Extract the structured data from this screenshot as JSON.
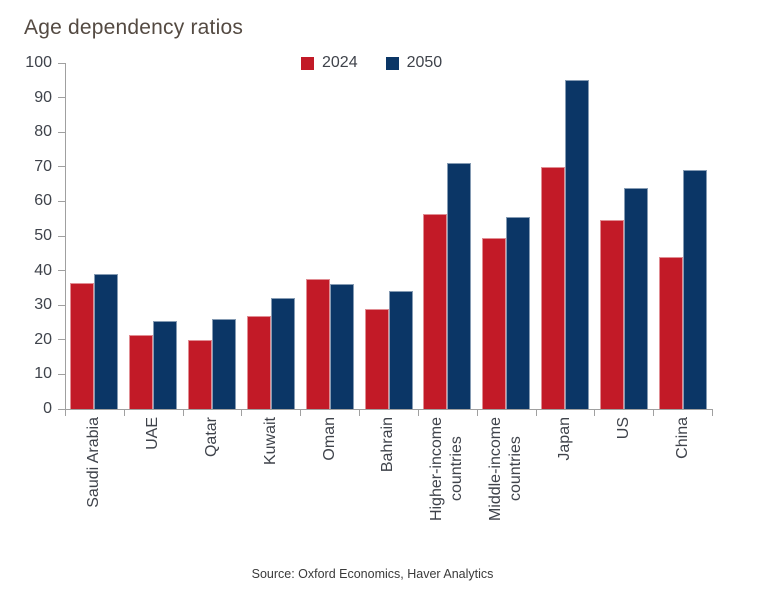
{
  "title": "Age dependency ratios",
  "source_note": "Source: Oxford Economics, Haver Analytics",
  "colors": {
    "series_2024": "#c21a27",
    "series_2050": "#0b3666",
    "axis": "#a0a0a0",
    "title_text": "#544a42",
    "tick_text": "#3f434b",
    "source_text": "#3a3a3a",
    "background": "#ffffff"
  },
  "chart_data": {
    "type": "bar",
    "title": "Age dependency ratios",
    "categories": [
      "Saudi Arabia",
      "UAE",
      "Qatar",
      "Kuwait",
      "Oman",
      "Bahrain",
      "Higher-income\ncountries",
      "Middle-income\ncountries",
      "Japan",
      "US",
      "China"
    ],
    "series": [
      {
        "name": "2024",
        "color": "#c21a27",
        "values": [
          36.5,
          21.5,
          20,
          27,
          37.5,
          29,
          56.5,
          49.5,
          70,
          54.5,
          44
        ]
      },
      {
        "name": "2050",
        "color": "#0b3666",
        "values": [
          39,
          25.5,
          26,
          32,
          36,
          34,
          71,
          55.5,
          95,
          64,
          69
        ]
      }
    ],
    "xlabel": "",
    "ylabel": "",
    "ylim": [
      0,
      100
    ],
    "ytick_step": 10,
    "grid": false,
    "legend_position": "top-center"
  }
}
